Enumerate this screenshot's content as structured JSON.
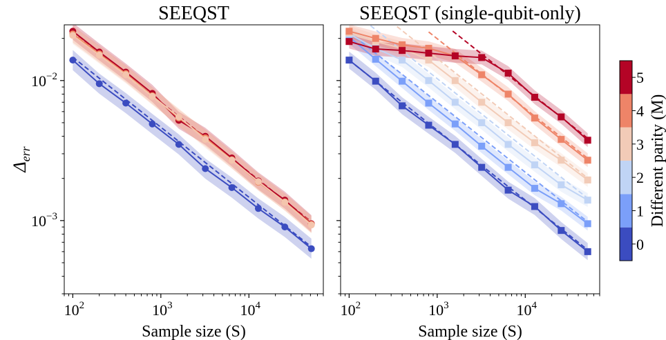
{
  "chart_data": [
    {
      "type": "line",
      "title": "SEEQST",
      "xlabel": "Sample size (S)",
      "ylabel": "Δ_err",
      "ylabel_parts": {
        "main": "Δ",
        "sub": "err"
      },
      "xscale": "log",
      "yscale": "log",
      "xlim": [
        80,
        70000
      ],
      "ylim": [
        0.0003,
        0.025
      ],
      "x": [
        100,
        200,
        400,
        800,
        1600,
        3200,
        6400,
        12800,
        25600,
        51200
      ],
      "xticks": [
        {
          "value": 100,
          "base": "10",
          "exp": "2"
        },
        {
          "value": 1000,
          "base": "10",
          "exp": "3"
        },
        {
          "value": 10000,
          "base": "10",
          "exp": "4"
        }
      ],
      "yticks": [
        {
          "value": 0.001,
          "base": "10",
          "exp": "−3"
        },
        {
          "value": 0.01,
          "base": "10",
          "exp": "−2"
        }
      ],
      "marker": "circle",
      "series": [
        {
          "M": 0,
          "color": "#3b4cc0",
          "values": [
            0.014,
            0.0095,
            0.0069,
            0.0049,
            0.0035,
            0.00235,
            0.00172,
            0.00122,
            0.0009,
            0.00063
          ],
          "band_factor": 1.18,
          "fit_start": 100
        },
        {
          "M": 5,
          "color": "#b40426",
          "values": [
            0.0225,
            0.016,
            0.0115,
            0.0081,
            0.0052,
            0.004,
            0.0028,
            0.00192,
            0.0014,
            0.00095
          ],
          "band_factor": 1.15,
          "fit_start": 100
        },
        {
          "M": 4,
          "color": "#ef8a62",
          "values": [
            0.0215,
            0.0155,
            0.0112,
            0.0078,
            0.0054,
            0.0039,
            0.00272,
            0.00188,
            0.00136,
            0.00094
          ],
          "band_factor": 1.15,
          "fit_start": 100
        },
        {
          "M": 3,
          "color": "#f4c5ad",
          "values": [
            0.021,
            0.0152,
            0.011,
            0.0077,
            0.0055,
            0.0038,
            0.0027,
            0.0019,
            0.00135,
            0.00093
          ],
          "band_factor": 1.15,
          "fit_start": 100
        }
      ]
    },
    {
      "type": "line",
      "title": "SEEQST (single-qubit-only)",
      "xlabel": "Sample size (S)",
      "xscale": "log",
      "yscale": "log",
      "xlim": [
        80,
        70000
      ],
      "ylim": [
        0.0003,
        0.025
      ],
      "x": [
        100,
        200,
        400,
        800,
        1600,
        3200,
        6400,
        12800,
        25600,
        51200
      ],
      "xticks": [
        {
          "value": 100,
          "base": "10",
          "exp": "2"
        },
        {
          "value": 1000,
          "base": "10",
          "exp": "3"
        },
        {
          "value": 10000,
          "base": "10",
          "exp": "4"
        }
      ],
      "marker": "square",
      "series": [
        {
          "M": 0,
          "color": "#3b4cc0",
          "values": [
            0.014,
            0.0099,
            0.0066,
            0.0048,
            0.0035,
            0.0024,
            0.00165,
            0.00126,
            0.00085,
            0.0006
          ],
          "band_factor": 1.15,
          "fit_start": 100
        },
        {
          "M": 1,
          "color": "#7b9ff9",
          "values": [
            0.0205,
            0.0142,
            0.0099,
            0.0069,
            0.0049,
            0.0034,
            0.0024,
            0.0017,
            0.00132,
            0.00095
          ],
          "band_factor": 1.12,
          "fit_start": 100
        },
        {
          "M": 2,
          "color": "#c0d4f5",
          "values": [
            0.0215,
            0.017,
            0.014,
            0.01,
            0.007,
            0.005,
            0.0035,
            0.0025,
            0.0018,
            0.0014
          ],
          "band_factor": 1.12,
          "fit_start": 150
        },
        {
          "M": 3,
          "color": "#f2cbb7",
          "values": [
            0.022,
            0.019,
            0.017,
            0.014,
            0.01,
            0.007,
            0.005,
            0.0036,
            0.0027,
            0.00195
          ],
          "band_factor": 1.12,
          "fit_start": 350
        },
        {
          "M": 4,
          "color": "#ee8468",
          "values": [
            0.0225,
            0.02,
            0.018,
            0.017,
            0.015,
            0.011,
            0.008,
            0.0054,
            0.0038,
            0.0027
          ],
          "band_factor": 1.12,
          "fit_start": 800
        },
        {
          "M": 5,
          "color": "#b40426",
          "values": [
            0.019,
            0.0168,
            0.0164,
            0.0157,
            0.015,
            0.0146,
            0.0113,
            0.0076,
            0.0055,
            0.00375
          ],
          "band_factor": 1.12,
          "fit_start": 1500
        }
      ]
    }
  ],
  "colorbar": {
    "label": "Different parity (M)",
    "ticks": [
      "0",
      "1",
      "2",
      "3",
      "4",
      "5"
    ],
    "colors": [
      "#3b4cc0",
      "#7b9ff9",
      "#c0d4f5",
      "#f2cbb7",
      "#ee8468",
      "#b40426"
    ]
  }
}
